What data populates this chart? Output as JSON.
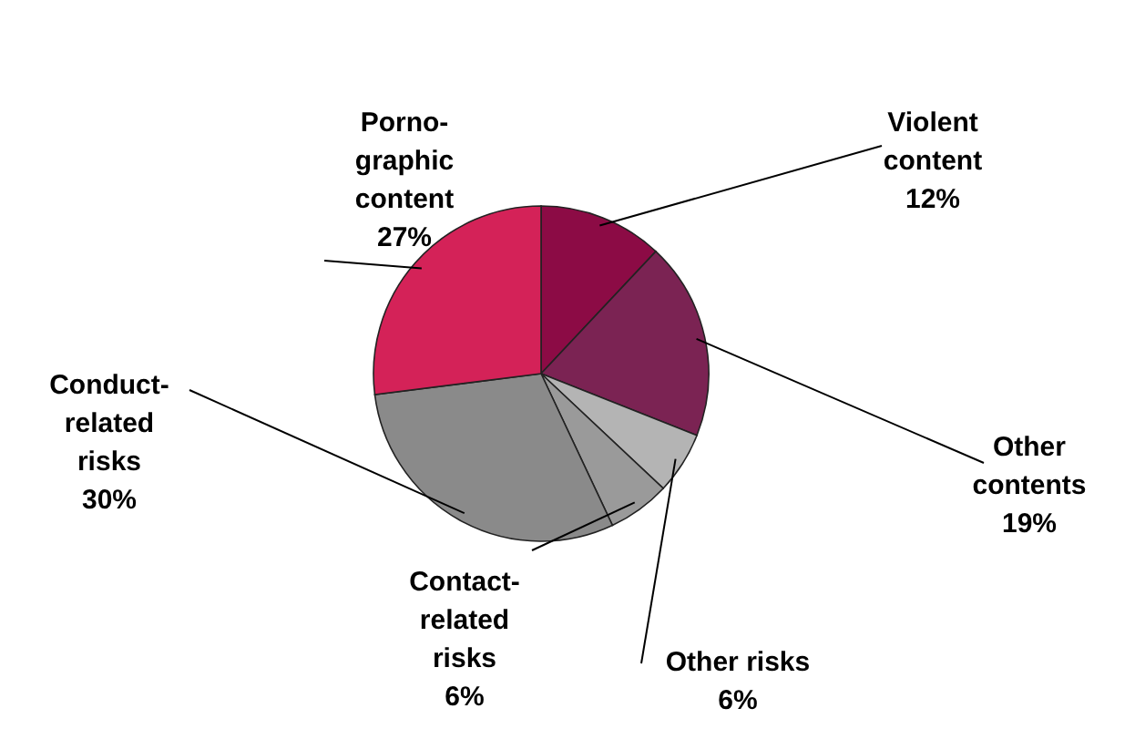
{
  "chart_data": {
    "type": "pie",
    "categories": [
      "Violent\ncontent",
      "Other\ncontents",
      "Other risks",
      "Contact-\nrelated\nrisks",
      "Conduct-\nrelated\nrisks",
      "Porno-\ngraphic\ncontent"
    ],
    "values": [
      12,
      19,
      6,
      6,
      30,
      27
    ],
    "value_labels": [
      "12%",
      "19%",
      "6%",
      "6%",
      "30%",
      "27%"
    ],
    "colors": [
      "#8c0b45",
      "#7b2353",
      "#b4b4b4",
      "#9a9a9a",
      "#8a8a8a",
      "#d42258"
    ]
  }
}
